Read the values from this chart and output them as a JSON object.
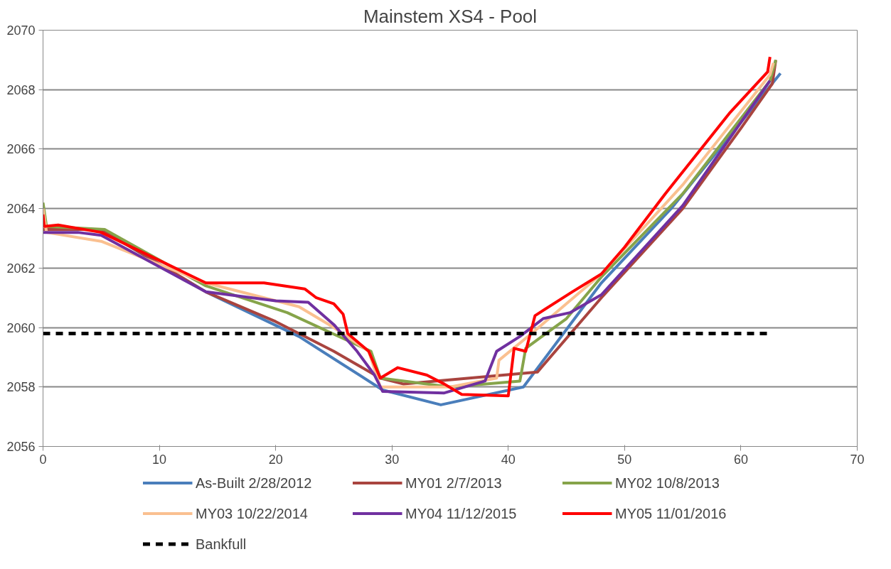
{
  "chart_data": {
    "type": "line",
    "title": "Mainstem XS4 - Pool",
    "xlim": [
      0,
      70
    ],
    "xticks": [
      0,
      10,
      20,
      30,
      40,
      50,
      60,
      70
    ],
    "ylim": [
      2056,
      2070
    ],
    "yticks": [
      2056,
      2058,
      2060,
      2062,
      2064,
      2066,
      2068,
      2070
    ],
    "grid": "y",
    "legend": "bottom",
    "marker": "none",
    "series": [
      {
        "name": "As-Built 2/28/2012",
        "color": "#4a7ebb",
        "x": [
          0,
          5,
          14,
          22,
          29.2,
          34.2,
          41.3,
          48,
          54,
          63.4
        ],
        "values": [
          2063.3,
          2063.3,
          2061.2,
          2059.7,
          2057.9,
          2057.4,
          2058.0,
          2061.5,
          2064.0,
          2068.55
        ]
      },
      {
        "name": "MY01 2/7/2013",
        "color": "#a9443f",
        "x": [
          0,
          5,
          14,
          20,
          25,
          29,
          31,
          42.5,
          48,
          55,
          60,
          62.7,
          63
        ],
        "values": [
          2063.3,
          2063.3,
          2061.2,
          2060.2,
          2059.2,
          2058.3,
          2058.1,
          2058.5,
          2061.0,
          2064.0,
          2066.7,
          2068.2,
          2069.0
        ]
      },
      {
        "name": "MY02 10/8/2013",
        "color": "#86a44a",
        "x": [
          0,
          0.3,
          5.3,
          14,
          21,
          28.2,
          29,
          35,
          41,
          41.5,
          45,
          48,
          55,
          62.5,
          63
        ],
        "values": [
          2064.2,
          2063.4,
          2063.3,
          2061.4,
          2060.5,
          2059.2,
          2058.3,
          2058.0,
          2058.2,
          2059.3,
          2060.3,
          2061.7,
          2064.5,
          2068.3,
          2069.0
        ]
      },
      {
        "name": "MY03 10/22/2014",
        "color": "#fac090",
        "x": [
          0,
          0.3,
          5,
          14,
          22,
          25,
          28,
          29,
          35,
          39,
          39.2,
          42,
          45,
          48,
          55,
          62.5,
          62.8
        ],
        "values": [
          2064.0,
          2063.2,
          2062.9,
          2061.5,
          2060.7,
          2060.0,
          2059.2,
          2058.0,
          2058.0,
          2058.3,
          2058.9,
          2059.8,
          2060.8,
          2061.8,
          2064.8,
          2068.5,
          2068.9
        ]
      },
      {
        "name": "MY04 11/12/2015",
        "color": "#7030a0",
        "x": [
          0,
          3,
          5,
          14,
          20,
          22.8,
          25,
          27,
          28.5,
          29.2,
          34.5,
          38,
          39,
          41,
          43,
          45.3,
          48,
          55,
          62.5
        ],
        "values": [
          2063.2,
          2063.2,
          2063.1,
          2061.2,
          2060.9,
          2060.85,
          2060.1,
          2059.2,
          2058.4,
          2057.85,
          2057.8,
          2058.2,
          2059.2,
          2059.7,
          2060.3,
          2060.5,
          2061.1,
          2064.1,
          2068.3
        ]
      },
      {
        "name": "MY05 11/01/2016",
        "color": "#ff0000",
        "x": [
          0,
          0.1,
          1.3,
          5,
          14,
          19,
          22.5,
          23.5,
          25,
          25.8,
          26.2,
          28,
          29,
          30.5,
          33,
          34.5,
          36,
          40,
          40.5,
          41.5,
          42.3,
          45.5,
          48,
          50,
          53.5,
          59,
          62.3,
          62.5
        ],
        "values": [
          2063.8,
          2063.4,
          2063.45,
          2063.2,
          2061.5,
          2061.5,
          2061.3,
          2061.0,
          2060.8,
          2060.45,
          2059.8,
          2059.2,
          2058.3,
          2058.65,
          2058.4,
          2058.1,
          2057.75,
          2057.7,
          2059.3,
          2059.2,
          2060.4,
          2061.2,
          2061.8,
          2062.7,
          2064.5,
          2067.2,
          2068.6,
          2069.1
        ]
      },
      {
        "name": "Bankfull",
        "color": "#000000",
        "line_style": "dashed",
        "x": [
          0,
          62.5
        ],
        "values": [
          2059.8,
          2059.8
        ]
      }
    ]
  }
}
